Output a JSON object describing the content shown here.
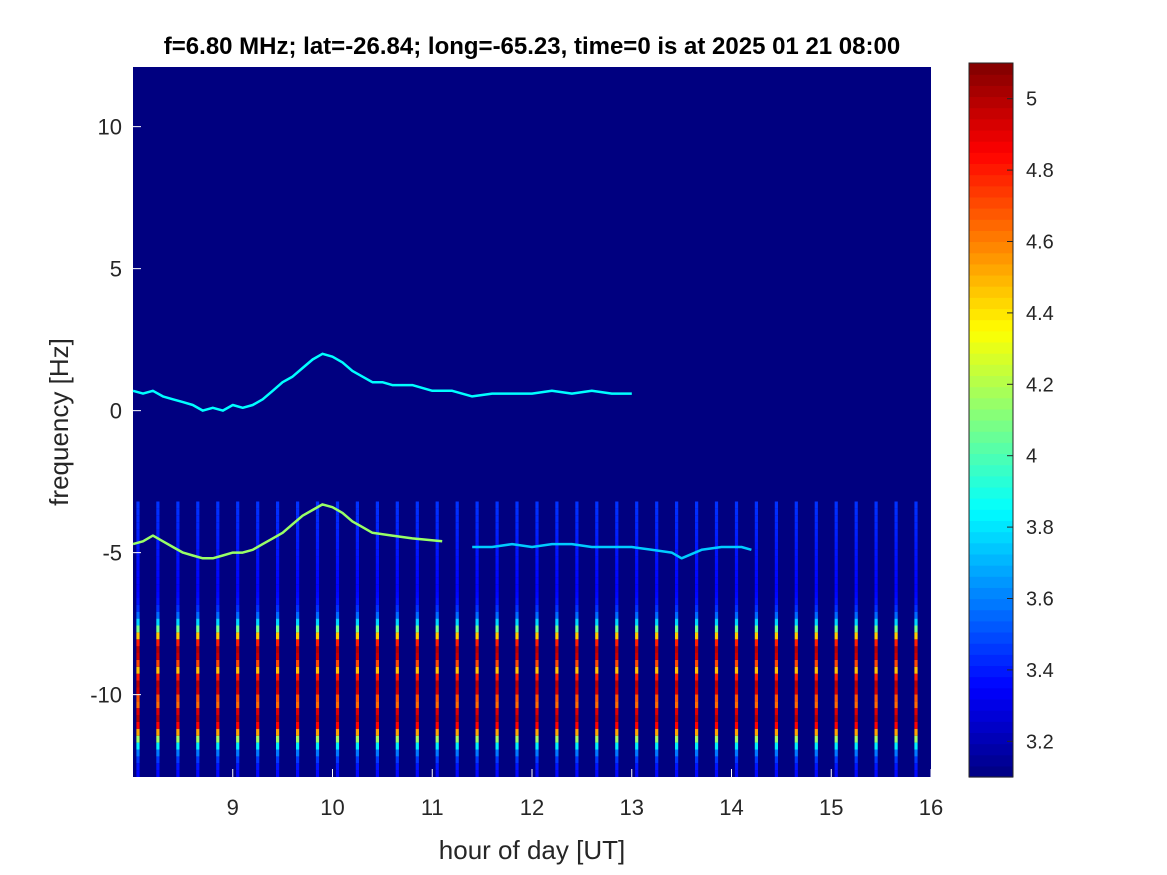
{
  "chart_data": {
    "type": "heatmap",
    "title": "f=6.80 MHz;  lat=-26.84; long=-65.23, time=0 is at 2025 01 21 08:00",
    "xlabel": "hour of day [UT]",
    "ylabel": "frequency [Hz]",
    "xlim": [
      8.0,
      16.0
    ],
    "ylim": [
      -12.9,
      12.1
    ],
    "xticks": [
      9,
      10,
      11,
      12,
      13,
      14,
      15,
      16
    ],
    "yticks": [
      -10,
      -5,
      0,
      5,
      10
    ],
    "colorbar": {
      "colormap": "jet",
      "clim": [
        3.1,
        5.1
      ],
      "ticks": [
        3.2,
        3.4,
        3.6,
        3.8,
        4,
        4.2,
        4.4,
        4.6,
        4.8,
        5
      ]
    },
    "background_level": 3.1,
    "traces": [
      {
        "points": [
          [
            8.0,
            0.7
          ],
          [
            8.1,
            0.6
          ],
          [
            8.2,
            0.7
          ],
          [
            8.3,
            0.5
          ],
          [
            8.4,
            0.4
          ],
          [
            8.5,
            0.3
          ],
          [
            8.6,
            0.2
          ],
          [
            8.7,
            0.0
          ],
          [
            8.8,
            0.1
          ],
          [
            8.9,
            0.0
          ],
          [
            9.0,
            0.2
          ],
          [
            9.1,
            0.1
          ],
          [
            9.2,
            0.2
          ],
          [
            9.3,
            0.4
          ],
          [
            9.4,
            0.7
          ],
          [
            9.5,
            1.0
          ],
          [
            9.6,
            1.2
          ],
          [
            9.7,
            1.5
          ],
          [
            9.8,
            1.8
          ],
          [
            9.9,
            2.0
          ],
          [
            10.0,
            1.9
          ],
          [
            10.1,
            1.7
          ],
          [
            10.2,
            1.4
          ],
          [
            10.3,
            1.2
          ],
          [
            10.4,
            1.0
          ],
          [
            10.5,
            1.0
          ],
          [
            10.6,
            0.9
          ],
          [
            10.8,
            0.9
          ],
          [
            11.0,
            0.7
          ],
          [
            11.2,
            0.7
          ],
          [
            11.4,
            0.5
          ],
          [
            11.6,
            0.6
          ],
          [
            11.8,
            0.6
          ],
          [
            12.0,
            0.6
          ],
          [
            12.2,
            0.7
          ],
          [
            12.4,
            0.6
          ],
          [
            12.6,
            0.7
          ],
          [
            12.8,
            0.6
          ],
          [
            13.0,
            0.6
          ]
        ],
        "level": 3.85
      },
      {
        "points": [
          [
            8.0,
            -4.7
          ],
          [
            8.1,
            -4.6
          ],
          [
            8.2,
            -4.4
          ],
          [
            8.3,
            -4.6
          ],
          [
            8.4,
            -4.8
          ],
          [
            8.5,
            -5.0
          ],
          [
            8.6,
            -5.1
          ],
          [
            8.7,
            -5.2
          ],
          [
            8.8,
            -5.2
          ],
          [
            8.9,
            -5.1
          ],
          [
            9.0,
            -5.0
          ],
          [
            9.1,
            -5.0
          ],
          [
            9.2,
            -4.9
          ],
          [
            9.3,
            -4.7
          ],
          [
            9.4,
            -4.5
          ],
          [
            9.5,
            -4.3
          ],
          [
            9.6,
            -4.0
          ],
          [
            9.7,
            -3.7
          ],
          [
            9.8,
            -3.5
          ],
          [
            9.9,
            -3.3
          ],
          [
            10.0,
            -3.4
          ],
          [
            10.1,
            -3.6
          ],
          [
            10.2,
            -3.9
          ],
          [
            10.3,
            -4.1
          ],
          [
            10.4,
            -4.3
          ],
          [
            10.6,
            -4.4
          ],
          [
            10.8,
            -4.5
          ],
          [
            11.1,
            -4.6
          ]
        ],
        "level": 4.15
      },
      {
        "points": [
          [
            11.4,
            -4.8
          ],
          [
            11.6,
            -4.8
          ],
          [
            11.8,
            -4.7
          ],
          [
            12.0,
            -4.8
          ],
          [
            12.2,
            -4.7
          ],
          [
            12.4,
            -4.7
          ],
          [
            12.6,
            -4.8
          ],
          [
            12.8,
            -4.8
          ],
          [
            13.0,
            -4.8
          ],
          [
            13.2,
            -4.9
          ],
          [
            13.4,
            -5.0
          ],
          [
            13.5,
            -5.2
          ],
          [
            13.7,
            -4.9
          ],
          [
            13.9,
            -4.8
          ],
          [
            14.1,
            -4.8
          ],
          [
            14.2,
            -4.9
          ]
        ],
        "level": 3.75
      }
    ],
    "stripes": {
      "spacing_hours": 0.2,
      "first_hour": 8.05,
      "ymin": -12.9,
      "ymax": -3.2,
      "level_peak": 5.0,
      "peak_frequencies": [
        -8.5,
        -9.7,
        -10.8
      ]
    }
  }
}
